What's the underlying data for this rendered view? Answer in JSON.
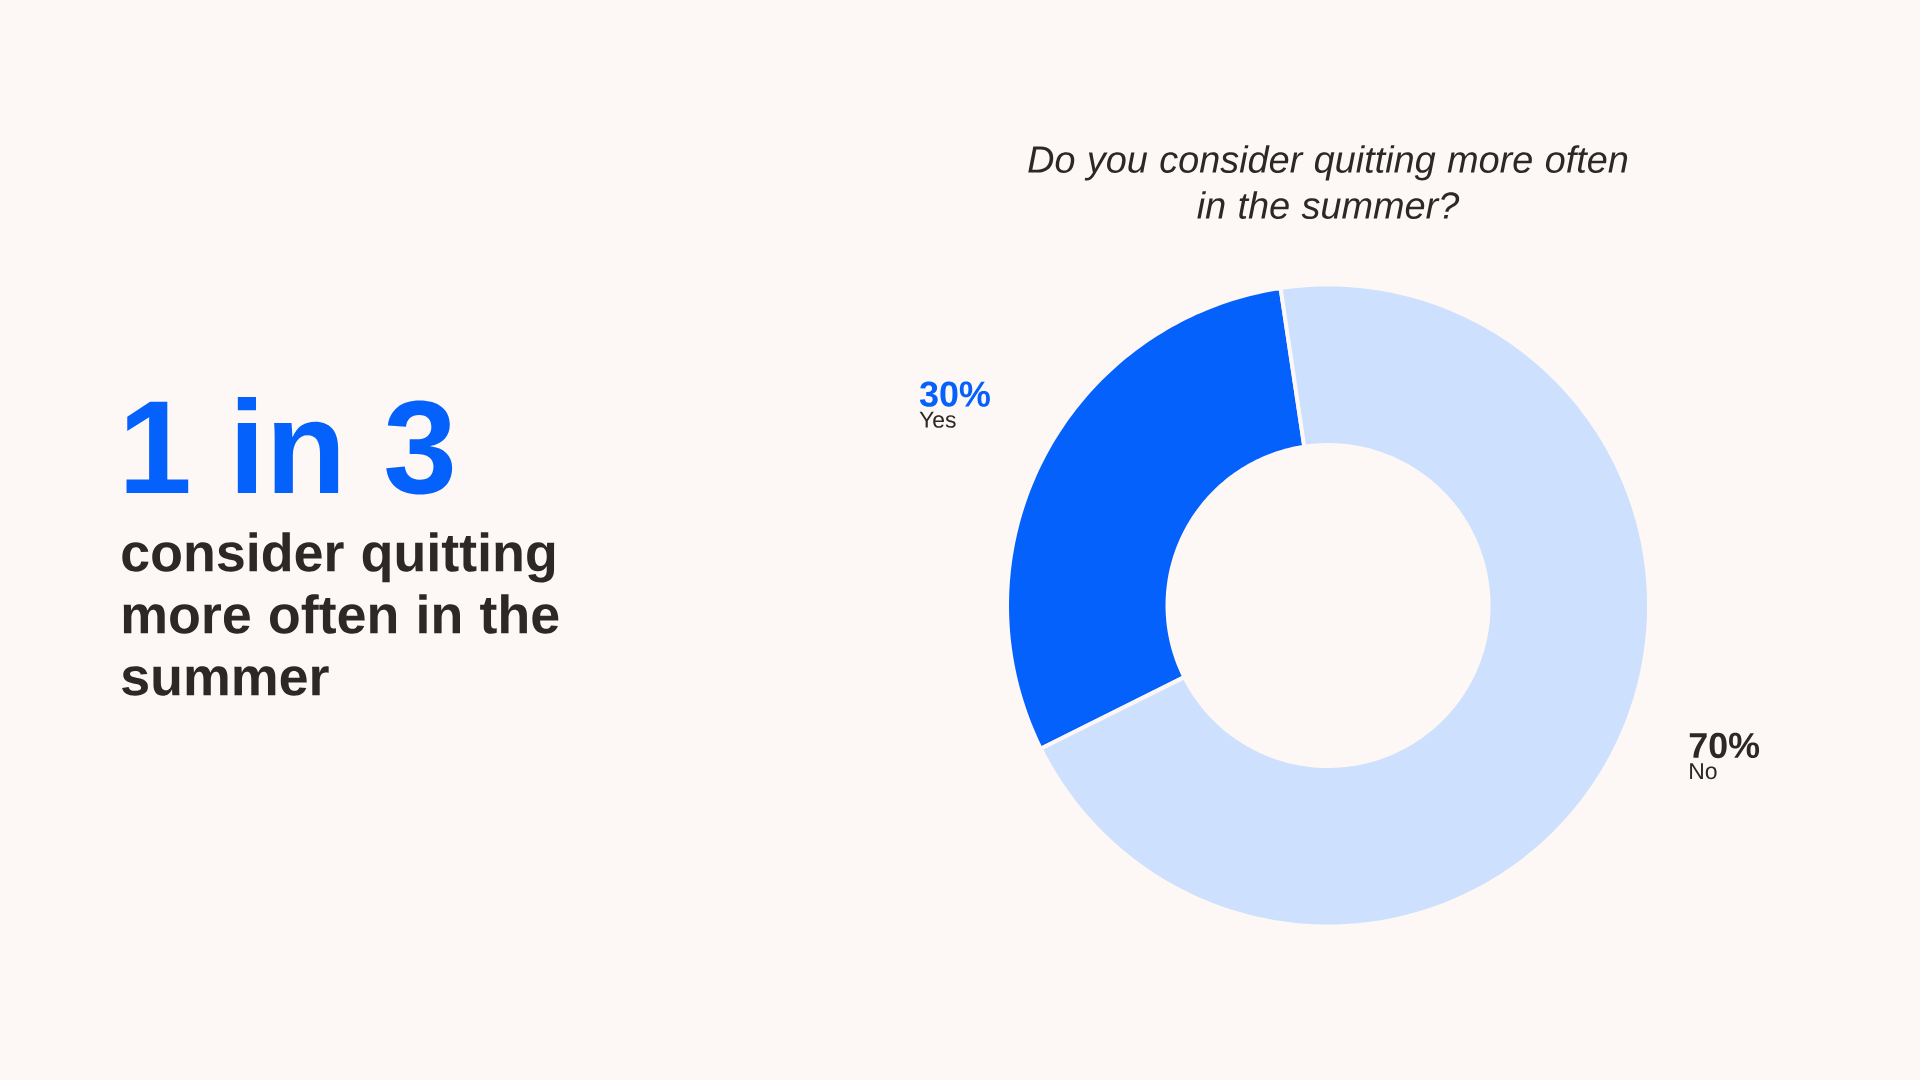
{
  "chart_data": {
    "type": "donut",
    "title": "Do you consider quitting more often in the summer?",
    "categories": [
      "Yes",
      "No"
    ],
    "values": [
      30,
      70
    ],
    "colors": [
      "#0561fb",
      "#cde0fd"
    ],
    "value_labels": [
      "30%",
      "70%"
    ],
    "annotations": [
      "1 in 3",
      "consider quitting more often in the summer"
    ]
  }
}
